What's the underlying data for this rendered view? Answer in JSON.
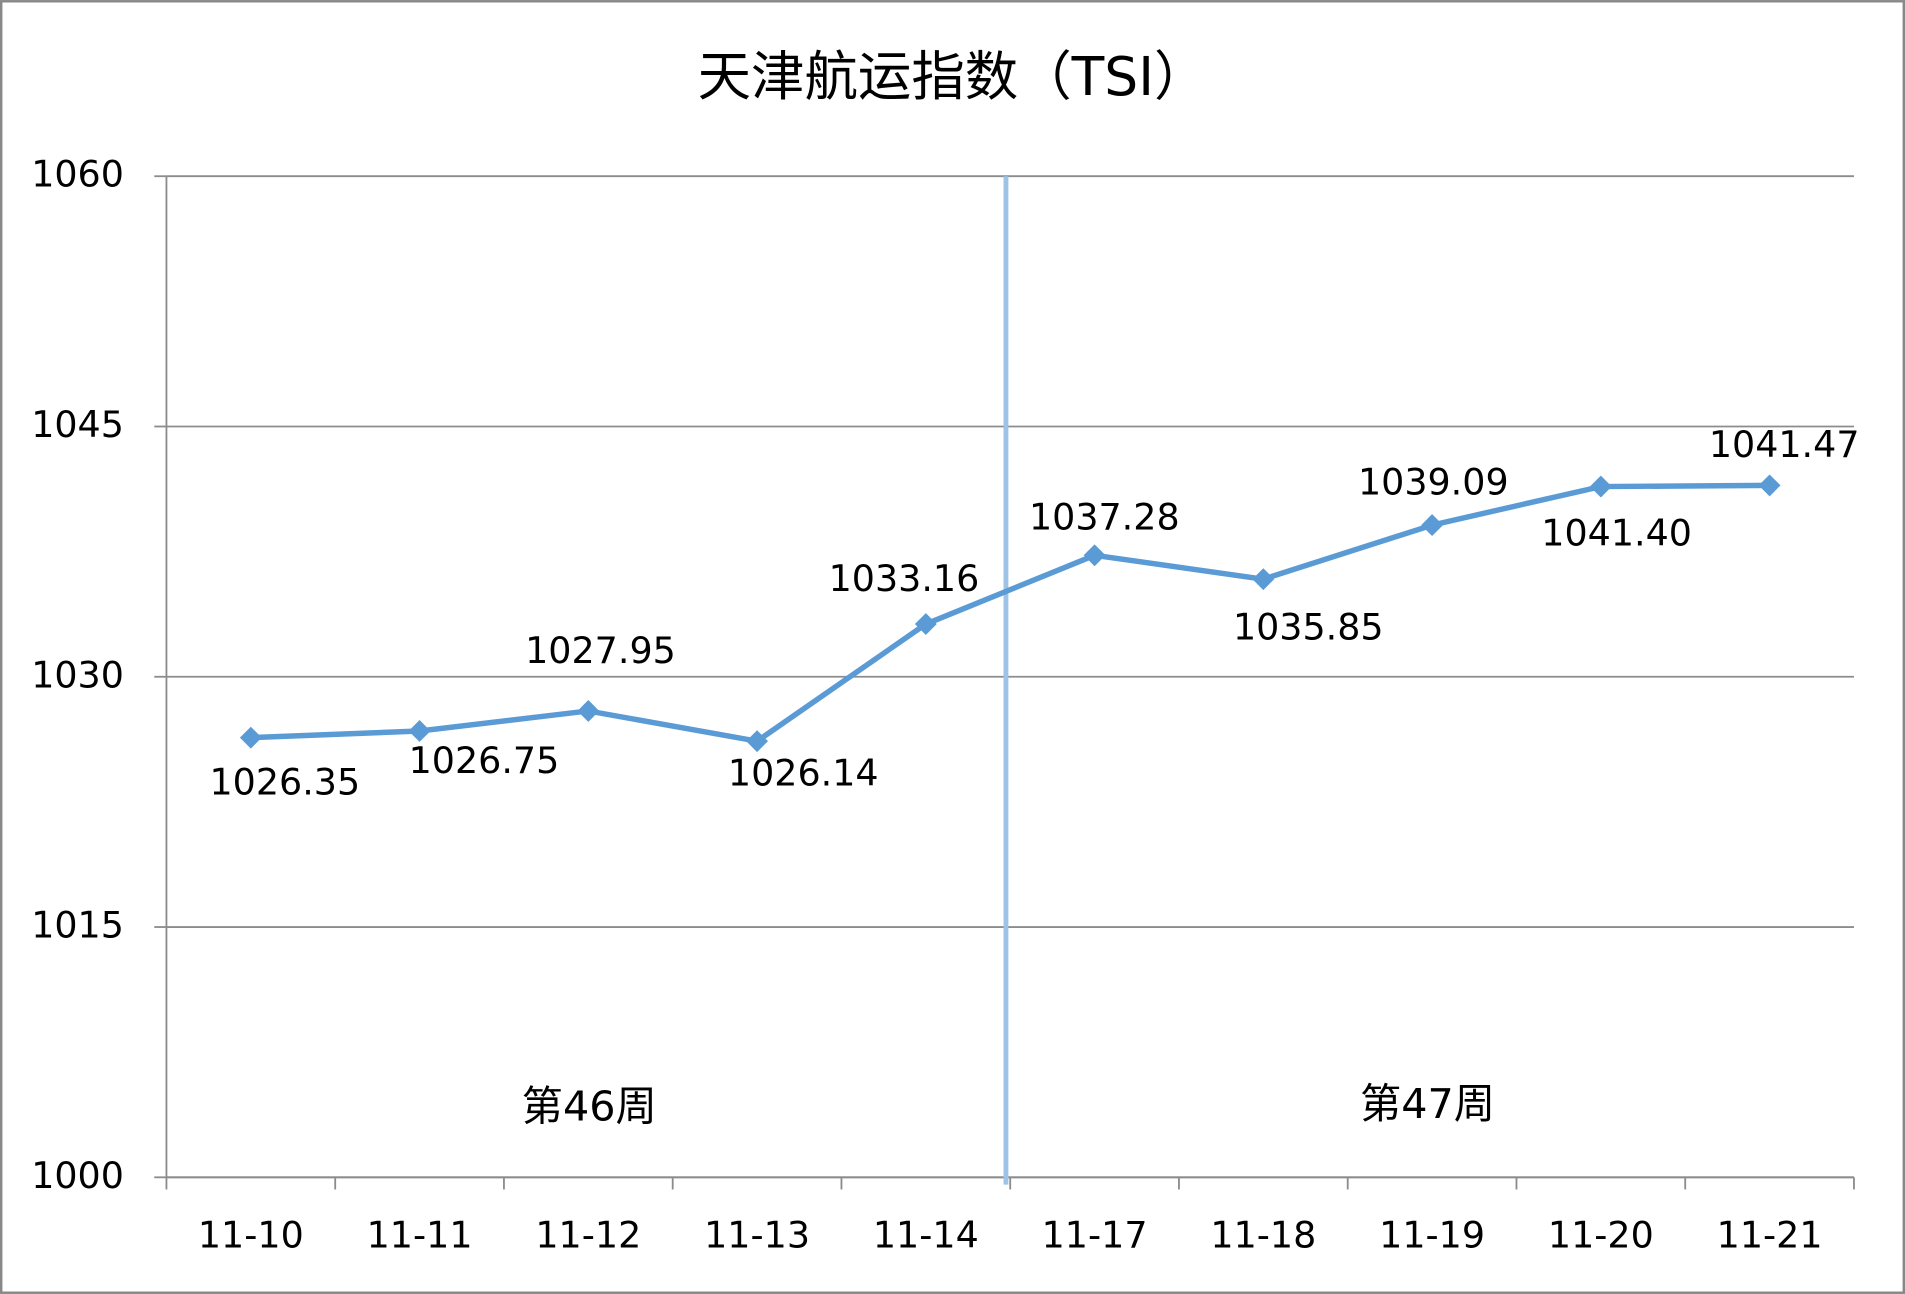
{
  "chart_data": {
    "type": "line",
    "title": "天津航运指数（TSI）",
    "categories": [
      "11-10",
      "11-11",
      "11-12",
      "11-13",
      "11-14",
      "11-17",
      "11-18",
      "11-19",
      "11-20",
      "11-21"
    ],
    "series": [
      {
        "name": "TSI",
        "color": "#5b9bd5",
        "values": [
          1026.35,
          1026.75,
          1027.95,
          1026.14,
          1033.16,
          1037.28,
          1035.85,
          1039.09,
          1041.4,
          1041.47
        ],
        "value_labels": [
          "1026.35",
          "1026.75",
          "1027.95",
          "1026.14",
          "1033.16",
          "1037.28",
          "1035.85",
          "1039.09",
          "1041.40",
          "1041.47"
        ]
      }
    ],
    "ylim": [
      1000,
      1060
    ],
    "yticks": [
      1000,
      1015,
      1030,
      1045,
      1060
    ],
    "grid": true,
    "annotations": [
      "第46周",
      "第47周"
    ]
  }
}
